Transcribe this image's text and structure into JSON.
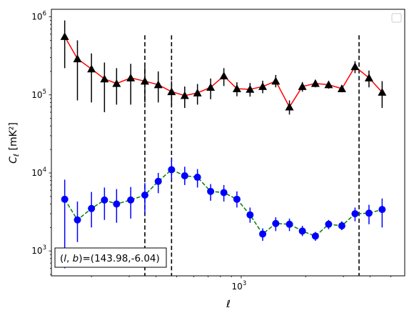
{
  "chart_data": {
    "type": "scatter",
    "xscale": "log",
    "yscale": "log",
    "xlabel": "ℓ",
    "ylabel_main": "C",
    "ylabel_sub": "ℓ",
    "ylabel_unit": "[mK²]",
    "xlim": [
      130,
      5800
    ],
    "ylim": [
      480,
      1250000
    ],
    "xticks": [
      {
        "value": 1000,
        "base": "10",
        "exp": "3"
      }
    ],
    "yticks": [
      {
        "value": 1000,
        "base": "10",
        "exp": "3"
      },
      {
        "value": 10000,
        "base": "10",
        "exp": "4"
      },
      {
        "value": 100000,
        "base": "10",
        "exp": "5"
      },
      {
        "value": 1000000,
        "base": "10",
        "exp": "6"
      }
    ],
    "annotation": "(l, b)=(143.98,-6.04)",
    "annotation_parts": {
      "prefix": "(",
      "l": "l",
      "comma": ", ",
      "b": "b",
      "suffix": ")=(143.98,-6.04)"
    },
    "vlines": [
      355,
      473,
      3550
    ],
    "vline_top": 580000,
    "legend": "top-right",
    "series": [
      {
        "marker": "triangle",
        "line_color": "#ff0000",
        "line_style": "solid",
        "marker_color": "#000000",
        "error_color": "#000000",
        "x": [
          150,
          172,
          200,
          230,
          262,
          305,
          355,
          410,
          473,
          545,
          625,
          720,
          830,
          955,
          1100,
          1260,
          1450,
          1680,
          1930,
          2220,
          2560,
          2950,
          3400,
          3950,
          4550
        ],
        "y": [
          560000,
          290000,
          215000,
          160000,
          140000,
          165000,
          150000,
          135000,
          110000,
          98000,
          106000,
          125000,
          175000,
          120000,
          118000,
          128000,
          150000,
          70000,
          128000,
          140000,
          135000,
          120000,
          230000,
          165000,
          108000
        ],
        "ylo": [
          220000,
          85000,
          80000,
          60000,
          75000,
          75000,
          80000,
          80000,
          72000,
          68000,
          75000,
          88000,
          130000,
          96000,
          95000,
          105000,
          125000,
          56000,
          110000,
          125000,
          120000,
          108000,
          190000,
          125000,
          68000
        ],
        "yhi": [
          900000,
          500000,
          340000,
          260000,
          220000,
          250000,
          230000,
          200000,
          150000,
          128000,
          138000,
          162000,
          220000,
          145000,
          142000,
          152000,
          180000,
          85000,
          146000,
          156000,
          150000,
          133000,
          270000,
          205000,
          150000
        ]
      },
      {
        "marker": "circle",
        "line_color": "#008000",
        "line_style": "dashed",
        "marker_color": "#0000ff",
        "error_color": "#0000ff",
        "x": [
          150,
          172,
          200,
          230,
          262,
          305,
          355,
          410,
          473,
          545,
          625,
          720,
          830,
          955,
          1100,
          1260,
          1450,
          1680,
          1930,
          2220,
          2560,
          2950,
          3400,
          3950,
          4550
        ],
        "y": [
          4600,
          2500,
          3500,
          4500,
          4000,
          4500,
          5200,
          7800,
          11000,
          9200,
          8800,
          5800,
          5600,
          4600,
          2900,
          1650,
          2250,
          2200,
          1800,
          1550,
          2200,
          2100,
          3000,
          3050,
          3400
        ],
        "ylo": [
          600,
          1300,
          2000,
          2500,
          2300,
          2600,
          3000,
          5500,
          8200,
          7000,
          6500,
          4400,
          4300,
          3600,
          2300,
          1350,
          1800,
          1800,
          1550,
          1350,
          1900,
          1850,
          2400,
          2200,
          2000
        ],
        "yhi": [
          8200,
          4300,
          5700,
          6500,
          6200,
          6600,
          7400,
          10000,
          15000,
          12000,
          11200,
          7200,
          7000,
          5800,
          3600,
          1950,
          2700,
          2600,
          2100,
          1750,
          2500,
          2400,
          3600,
          3900,
          4700
        ]
      }
    ]
  }
}
